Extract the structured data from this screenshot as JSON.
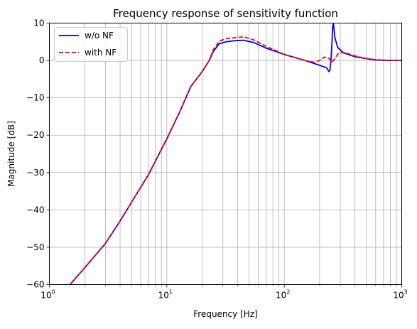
{
  "chart_data": {
    "type": "line",
    "title": "Frequency response of sensitivity function",
    "xlabel": "Frequency [Hz]",
    "ylabel": "Magnitude [dB]",
    "xscale": "log",
    "xlim": [
      1,
      1000
    ],
    "ylim": [
      -60,
      10
    ],
    "grid": "on (major and minor x, major y)",
    "legend_position": "upper-left",
    "x_ticks": [
      1,
      10,
      100,
      1000
    ],
    "x_tick_labels": [
      {
        "base": "10",
        "exp": "0"
      },
      {
        "base": "10",
        "exp": "1"
      },
      {
        "base": "10",
        "exp": "2"
      },
      {
        "base": "10",
        "exp": "3"
      }
    ],
    "y_ticks": [
      -60,
      -50,
      -40,
      -30,
      -20,
      -10,
      0,
      10
    ],
    "y_tick_labels": [
      "−60",
      "−50",
      "−40",
      "−30",
      "−20",
      "−10",
      "0",
      "10"
    ],
    "series": [
      {
        "name": "w/o NF",
        "color": "#0000ff",
        "style": "solid",
        "points": [
          [
            1.5,
            -60
          ],
          [
            2,
            -55.5
          ],
          [
            3,
            -49
          ],
          [
            4,
            -43
          ],
          [
            5,
            -38
          ],
          [
            7,
            -30.5
          ],
          [
            10,
            -21
          ],
          [
            13,
            -13.5
          ],
          [
            16,
            -7
          ],
          [
            20,
            -3
          ],
          [
            23,
            0
          ],
          [
            25,
            2.5
          ],
          [
            28,
            4.5
          ],
          [
            32,
            5
          ],
          [
            38,
            5.3
          ],
          [
            45,
            5.4
          ],
          [
            55,
            4.8
          ],
          [
            70,
            3.3
          ],
          [
            100,
            1.6
          ],
          [
            150,
            0
          ],
          [
            200,
            -1.3
          ],
          [
            230,
            -2
          ],
          [
            240,
            -3
          ],
          [
            245,
            -2.5
          ],
          [
            250,
            0
          ],
          [
            255,
            5
          ],
          [
            258,
            9
          ],
          [
            262,
            10
          ],
          [
            270,
            6
          ],
          [
            285,
            3.5
          ],
          [
            320,
            2
          ],
          [
            400,
            1
          ],
          [
            500,
            0.5
          ],
          [
            600,
            0.1
          ],
          [
            800,
            0
          ],
          [
            1000,
            0
          ]
        ]
      },
      {
        "name": "with NF",
        "color": "#ff0000",
        "style": "dashed",
        "points": [
          [
            1.5,
            -60
          ],
          [
            2,
            -55.5
          ],
          [
            3,
            -49
          ],
          [
            4,
            -43
          ],
          [
            5,
            -38
          ],
          [
            7,
            -30.5
          ],
          [
            10,
            -21
          ],
          [
            13,
            -13.5
          ],
          [
            16,
            -7
          ],
          [
            20,
            -3
          ],
          [
            23,
            0
          ],
          [
            25,
            3
          ],
          [
            28,
            5.2
          ],
          [
            32,
            5.8
          ],
          [
            38,
            6.1
          ],
          [
            45,
            6.3
          ],
          [
            55,
            5.5
          ],
          [
            70,
            3.8
          ],
          [
            100,
            1.6
          ],
          [
            150,
            0
          ],
          [
            180,
            -0.5
          ],
          [
            200,
            0
          ],
          [
            220,
            0.9
          ],
          [
            240,
            0.6
          ],
          [
            255,
            -0.5
          ],
          [
            270,
            0.5
          ],
          [
            290,
            2
          ],
          [
            320,
            2.2
          ],
          [
            400,
            1.2
          ],
          [
            500,
            0.5
          ],
          [
            600,
            0.2
          ],
          [
            800,
            0
          ],
          [
            1000,
            0
          ]
        ]
      }
    ]
  }
}
